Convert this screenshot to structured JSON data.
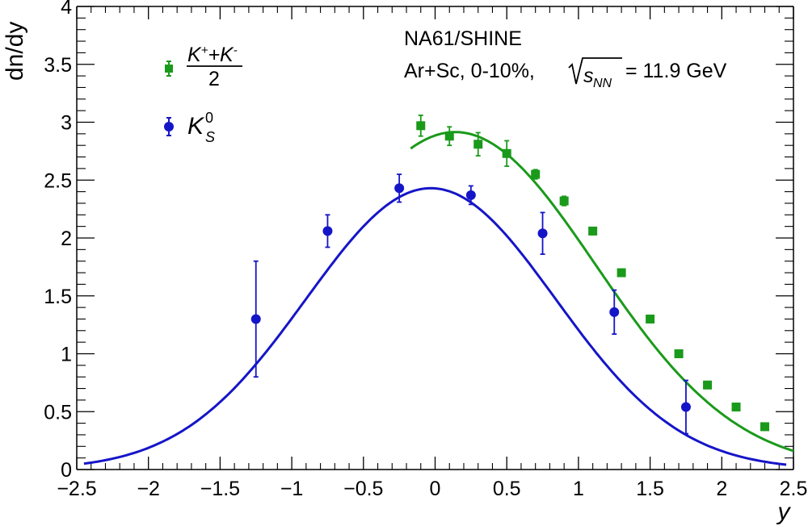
{
  "chart_data": {
    "type": "scatter",
    "title": "",
    "xlabel": "y",
    "ylabel": "dn/dy",
    "xlim": [
      -2.5,
      2.5
    ],
    "ylim": [
      0,
      4
    ],
    "x_ticks": [
      "−2.5",
      "−2",
      "−1.5",
      "−1",
      "−0.5",
      "0",
      "0.5",
      "1",
      "1.5",
      "2",
      "2.5"
    ],
    "y_ticks": [
      "0",
      "0.5",
      "1",
      "1.5",
      "2",
      "2.5",
      "3",
      "3.5",
      "4"
    ],
    "grid": false,
    "legend_position": "top-left",
    "annotations": {
      "experiment": "NA61/SHINE",
      "system_prefix": "Ar+Sc, 0-10%,",
      "sqrt_s": "s",
      "sqrt_sub": "NN",
      "energy": "= 11.9 GeV"
    },
    "series": [
      {
        "name": "(K⁺+K⁻)/2",
        "legend_num_K1": "K",
        "legend_num_sup1": "+",
        "legend_num_plus": "+K",
        "legend_num_sup2": "-",
        "legend_den": "2",
        "color": "#1a9a1a",
        "marker": "square",
        "x": [
          -0.1,
          0.1,
          0.3,
          0.5,
          0.7,
          0.9,
          1.1,
          1.3,
          1.5,
          1.7,
          1.9,
          2.1,
          2.3
        ],
        "y": [
          2.97,
          2.88,
          2.81,
          2.73,
          2.55,
          2.32,
          2.06,
          1.7,
          1.3,
          1.0,
          0.73,
          0.54,
          0.37
        ],
        "yerr": [
          0.09,
          0.08,
          0.1,
          0.11,
          0.04,
          0.04,
          0.03,
          0.03,
          0.03,
          0.02,
          0.02,
          0.03,
          0.03
        ],
        "fit": {
          "x_start": -0.17,
          "x_end": 2.5,
          "x0": 0.14,
          "amp": 2.915,
          "sigma": 0.98
        }
      },
      {
        "name": "K⁰S",
        "legend_K": "K",
        "legend_sup": "0",
        "legend_sub": "S",
        "color": "#1515c8",
        "marker": "circle",
        "x": [
          -1.25,
          -0.75,
          -0.25,
          0.25,
          0.75,
          1.25,
          1.75
        ],
        "y": [
          1.3,
          2.06,
          2.43,
          2.37,
          2.04,
          1.36,
          0.54
        ],
        "yerr": [
          0.5,
          0.14,
          0.12,
          0.08,
          0.18,
          0.19,
          0.23
        ],
        "fit": {
          "x_start": -2.45,
          "x_end": 2.45,
          "x0": -0.03,
          "amp": 2.43,
          "sigma": 0.87
        }
      }
    ]
  }
}
